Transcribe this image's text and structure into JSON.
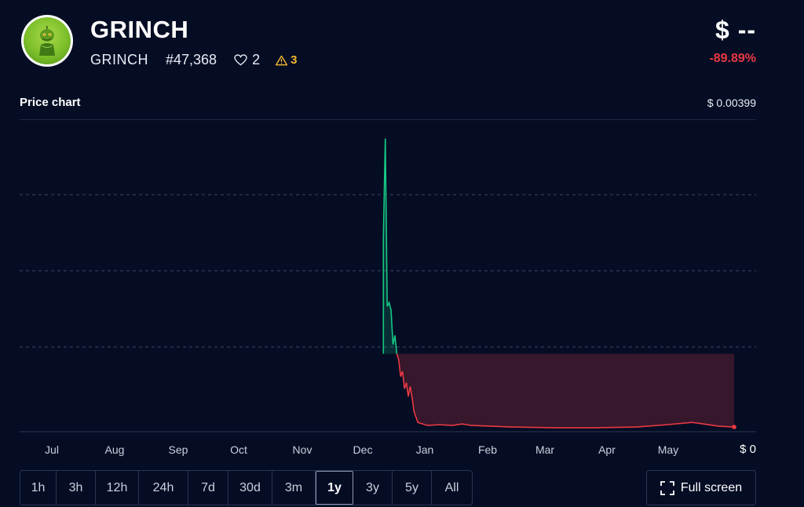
{
  "coin": {
    "name": "GRINCH",
    "symbol": "GRINCH",
    "rank": "#47,368",
    "favorites": "2",
    "warnings": "3",
    "price": "$ --",
    "change": "-89.89%"
  },
  "colors": {
    "background": "#050d24",
    "up": "#16c784",
    "down": "#ea3943",
    "warning": "#f5b731"
  },
  "chart_header": {
    "label": "Price chart",
    "max_label": "$ 0.00399"
  },
  "chart_data": {
    "type": "area",
    "x_labels": [
      "Jul",
      "Aug",
      "Sep",
      "Oct",
      "Nov",
      "Dec",
      "Jan",
      "Feb",
      "Mar",
      "Apr",
      "May"
    ],
    "y_min_label": "$ 0",
    "ylim": [
      0,
      0.00399
    ],
    "grid": "dashed-horizontal",
    "baseline": 0.00098,
    "points": [
      [
        "2023-12-05",
        0.00098
      ],
      [
        "2023-12-05",
        0.0025
      ],
      [
        "2023-12-06",
        0.0038
      ],
      [
        "2023-12-07",
        0.0016
      ],
      [
        "2023-12-08",
        0.00165
      ],
      [
        "2023-12-09",
        0.00155
      ],
      [
        "2023-12-10",
        0.0011
      ],
      [
        "2023-12-11",
        0.00122
      ],
      [
        "2023-12-12",
        0.00098
      ],
      [
        "2023-12-13",
        0.0009
      ],
      [
        "2023-12-14",
        0.00068
      ],
      [
        "2023-12-15",
        0.00075
      ],
      [
        "2023-12-16",
        0.00052
      ],
      [
        "2023-12-17",
        0.0006
      ],
      [
        "2023-12-18",
        0.00042
      ],
      [
        "2023-12-19",
        0.00055
      ],
      [
        "2023-12-20",
        0.0004
      ],
      [
        "2023-12-21",
        0.00022
      ],
      [
        "2023-12-23",
        8e-05
      ],
      [
        "2023-12-28",
        4e-05
      ],
      [
        "2024-01-03",
        5e-05
      ],
      [
        "2024-01-10",
        4e-05
      ],
      [
        "2024-01-15",
        6e-05
      ],
      [
        "2024-01-20",
        4e-05
      ],
      [
        "2024-02-10",
        2e-05
      ],
      [
        "2024-03-05",
        1e-05
      ],
      [
        "2024-03-25",
        1e-05
      ],
      [
        "2024-04-15",
        2e-05
      ],
      [
        "2024-05-01",
        5e-05
      ],
      [
        "2024-05-14",
        8e-05
      ],
      [
        "2024-05-20",
        6e-05
      ],
      [
        "2024-05-28",
        3e-05
      ],
      [
        "2024-06-05",
        2e-05
      ]
    ]
  },
  "timeframes": [
    "1h",
    "3h",
    "12h",
    "24h",
    "7d",
    "30d",
    "3m",
    "1y",
    "3y",
    "5y",
    "All"
  ],
  "active_timeframe": "1y",
  "fullscreen_label": "Full screen"
}
